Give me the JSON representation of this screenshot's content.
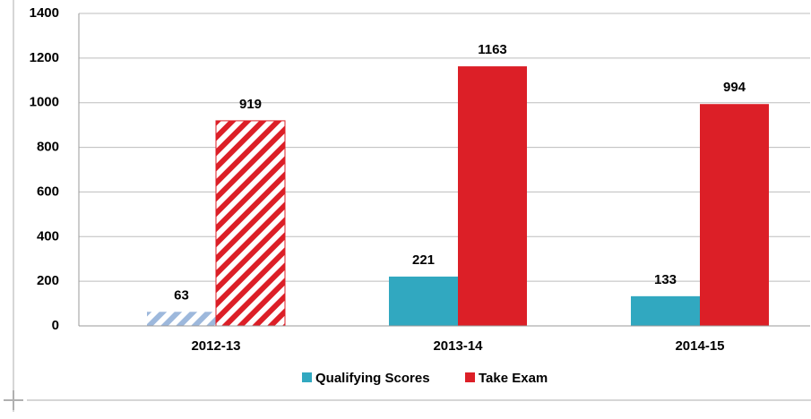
{
  "chart_data": {
    "type": "bar",
    "categories": [
      "2012-13",
      "2013-14",
      "2014-15"
    ],
    "series": [
      {
        "name": "Qualifying Scores",
        "color": "#31a8c0",
        "values": [
          63,
          221,
          133
        ]
      },
      {
        "name": "Take Exam",
        "color": "#dc1f27",
        "values": [
          919,
          1163,
          994
        ]
      }
    ],
    "hatched_categories": [
      0
    ],
    "ylim": [
      0,
      1400
    ],
    "yticks": [
      0,
      200,
      400,
      600,
      800,
      1000,
      1200,
      1400
    ],
    "grid": true,
    "legend": "bottom"
  }
}
